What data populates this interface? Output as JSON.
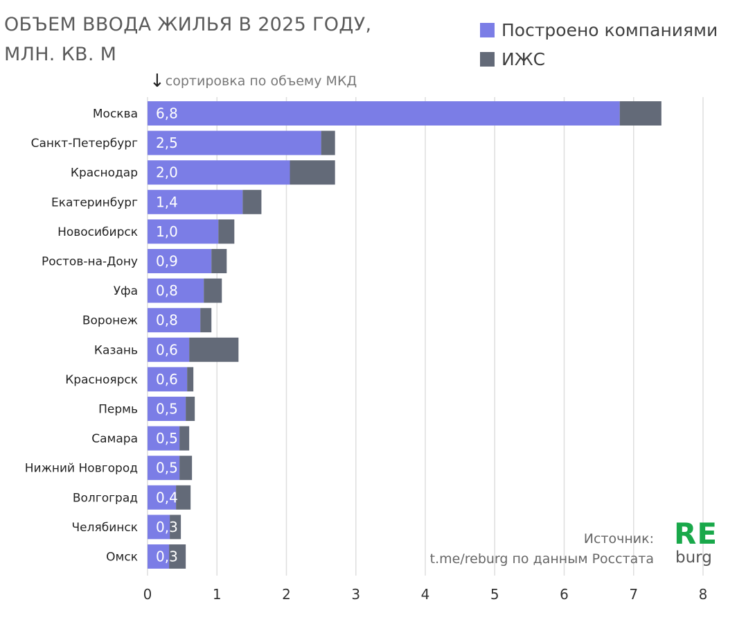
{
  "title_line1": "ОБЪЕМ ВВОДА ЖИЛЬЯ В 2025 ГОДУ,",
  "title_line2": "МЛН. КВ. М",
  "legend": {
    "built": "Построено компаниями",
    "izhs": "ИЖС"
  },
  "sort_note": "сортировка по объему МКД",
  "sort_arrow": "↓",
  "source_line1": "Источник:",
  "source_line2": "t.me/reburg по данным Росстата",
  "logo_top": "RE",
  "logo_bottom": "burg",
  "colors": {
    "built": "#7b7de6",
    "izhs": "#636a78",
    "grid": "#dedede"
  },
  "chart_data": {
    "type": "bar",
    "orientation": "horizontal",
    "stacked": true,
    "categories": [
      "Москва",
      "Санкт-Петербург",
      "Краснодар",
      "Екатеринбург",
      "Новосибирск",
      "Ростов-на-Дону",
      "Уфа",
      "Воронеж",
      "Казань",
      "Красноярск",
      "Пермь",
      "Самара",
      "Нижний Новгород",
      "Волгоград",
      "Челябинск",
      "Омск"
    ],
    "series": [
      {
        "name": "Построено компаниями",
        "values": [
          6.8,
          2.5,
          2.05,
          1.37,
          1.02,
          0.92,
          0.81,
          0.76,
          0.6,
          0.57,
          0.55,
          0.46,
          0.46,
          0.41,
          0.32,
          0.31
        ]
      },
      {
        "name": "ИЖС",
        "values": [
          0.6,
          0.2,
          0.65,
          0.27,
          0.23,
          0.22,
          0.26,
          0.16,
          0.71,
          0.09,
          0.13,
          0.14,
          0.18,
          0.21,
          0.16,
          0.24
        ]
      }
    ],
    "data_labels": [
      "6,8",
      "2,5",
      "2,0",
      "1,4",
      "1,0",
      "0,9",
      "0,8",
      "0,8",
      "0,6",
      "0,6",
      "0,5",
      "0,5",
      "0,5",
      "0,4",
      "0,3",
      "0,3"
    ],
    "xlim": [
      0,
      8
    ],
    "xticks": [
      "0",
      "1",
      "2",
      "3",
      "4",
      "5",
      "6",
      "7",
      "8"
    ],
    "grid": true
  }
}
